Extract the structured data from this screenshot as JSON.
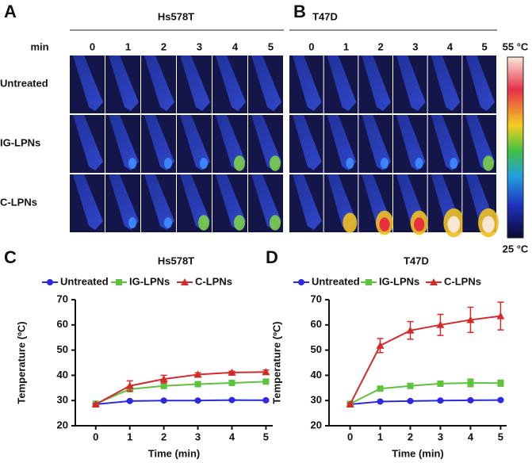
{
  "panels": [
    {
      "letter": "A",
      "title": "Hs578T",
      "axis_label": "min",
      "columns": [
        "0",
        "1",
        "2",
        "3",
        "4",
        "5"
      ],
      "rows": [
        "Untreated",
        "IG-LPNs",
        "C-LPNs"
      ]
    },
    {
      "letter": "B",
      "title": "T47D",
      "columns": [
        "0",
        "1",
        "2",
        "3",
        "4",
        "5"
      ]
    }
  ],
  "colorbar": {
    "max_label": "55 °C",
    "min_label": "25 °C"
  },
  "chart_data": [
    {
      "type": "line",
      "letter": "C",
      "title": "Hs578T",
      "xlabel": "Time (min)",
      "ylabel": "Temperature (ºC)",
      "x": [
        0,
        1,
        2,
        3,
        4,
        5
      ],
      "xlim": [
        -0.6,
        5.2
      ],
      "ylim": [
        20,
        70
      ],
      "xticks": [
        0,
        1,
        2,
        3,
        4,
        5
      ],
      "yticks": [
        20,
        30,
        40,
        50,
        60,
        70
      ],
      "series": [
        {
          "name": "Untreated",
          "color": "#2b2ae0",
          "marker": "circle",
          "values": [
            28.5,
            29.8,
            30,
            30,
            30.2,
            30.1
          ],
          "errors": [
            0.3,
            0.3,
            0.3,
            0.3,
            0.3,
            0.3
          ]
        },
        {
          "name": "IG-LPNs",
          "color": "#5cc43c",
          "marker": "square",
          "values": [
            28.7,
            34.5,
            35.8,
            36.5,
            37,
            37.5
          ],
          "errors": [
            0.3,
            1,
            1,
            0.8,
            0.6,
            0.6
          ]
        },
        {
          "name": "C-LPNs",
          "color": "#d42a2a",
          "marker": "triangle",
          "values": [
            28.5,
            35.8,
            38.5,
            40.3,
            41.1,
            41.3
          ],
          "errors": [
            0.4,
            2,
            1.5,
            0.7,
            0.5,
            0.8
          ]
        }
      ]
    },
    {
      "type": "line",
      "letter": "D",
      "title": "T47D",
      "xlabel": "Time (min)",
      "ylabel": "Temperature (ºC)",
      "x": [
        0,
        1,
        2,
        3,
        4,
        5
      ],
      "xlim": [
        -0.7,
        5.2
      ],
      "ylim": [
        20,
        70
      ],
      "xticks": [
        0,
        1,
        2,
        3,
        4,
        5
      ],
      "yticks": [
        20,
        30,
        40,
        50,
        60,
        70
      ],
      "series": [
        {
          "name": "Untreated",
          "color": "#2b2ae0",
          "marker": "circle",
          "values": [
            28.5,
            29.6,
            29.8,
            30,
            30.1,
            30.2
          ],
          "errors": [
            0.3,
            0.3,
            0.3,
            0.3,
            0.3,
            0.3
          ]
        },
        {
          "name": "IG-LPNs",
          "color": "#5cc43c",
          "marker": "square",
          "values": [
            28.7,
            34.7,
            35.8,
            36.7,
            37,
            36.9
          ],
          "errors": [
            0.3,
            0.8,
            1,
            1,
            1.5,
            1.2
          ]
        },
        {
          "name": "C-LPNs",
          "color": "#d42a2a",
          "marker": "triangle",
          "values": [
            28.5,
            51.8,
            57.8,
            60,
            62,
            63.5
          ],
          "errors": [
            0.5,
            2.8,
            3.5,
            4.2,
            5,
            5.5
          ]
        }
      ]
    }
  ]
}
